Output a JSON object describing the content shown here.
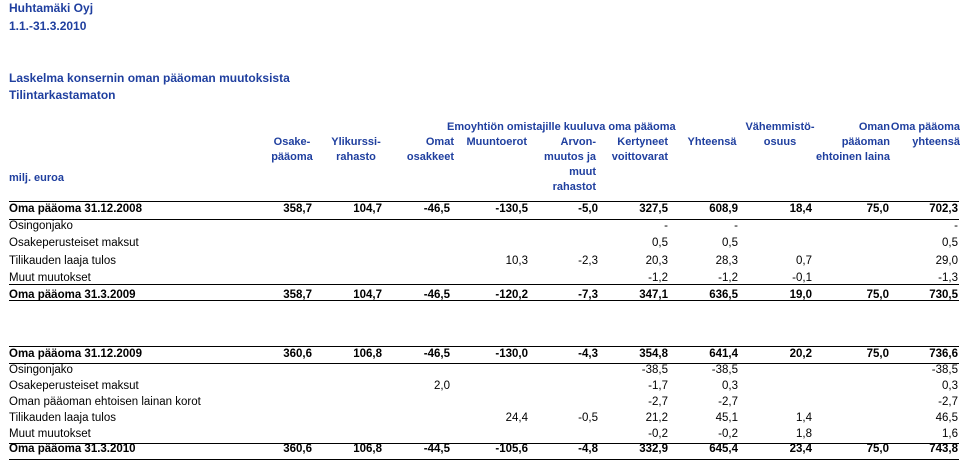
{
  "header": {
    "company": "Huhtamäki Oyj",
    "period": "1.1.-31.3.2010",
    "title": "Laskelma konsernin oman pääoman muutoksista",
    "subtitle": "Tilintarkastamaton",
    "unit": "milj. euroa"
  },
  "columns": {
    "group_title": "Emoyhtiön omistajille kuuluva oma pääoma",
    "c1": "Osake-\npääoma",
    "c2": "Ylikurssi-\nrahasto",
    "c3": "Omat\nosakkeet",
    "c4": "Muuntoerot",
    "c5": "Arvon-\nmuutos ja\nmuut\nrahastot",
    "c6": "Kertyneet\nvoittovarat",
    "c7": "Yhteensä",
    "c8": "Vähemmistö-\nosuus",
    "c9": "Oman\npääoman\nehtoinen laina",
    "c10": "Oma pääoma\nyhteensä"
  },
  "block1": [
    {
      "label": "Oma pääoma 31.12.2008",
      "bold": true,
      "values": [
        "358,7",
        "104,7",
        "-46,5",
        "-130,5",
        "-5,0",
        "327,5",
        "608,9",
        "18,4",
        "75,0",
        "702,3"
      ]
    },
    {
      "label": "Osingonjako",
      "bold": false,
      "values": [
        "",
        "",
        "",
        "",
        "",
        "-",
        "-",
        "",
        "",
        "-"
      ]
    },
    {
      "label": "Osakeperusteiset maksut",
      "bold": false,
      "values": [
        "",
        "",
        "",
        "",
        "",
        "0,5",
        "0,5",
        "",
        "",
        "0,5"
      ]
    },
    {
      "label": "Tilikauden laaja tulos",
      "bold": false,
      "values": [
        "",
        "",
        "",
        "10,3",
        "-2,3",
        "20,3",
        "28,3",
        "0,7",
        "",
        "29,0"
      ]
    },
    {
      "label": "Muut muutokset",
      "bold": false,
      "values": [
        "",
        "",
        "",
        "",
        "",
        "-1,2",
        "-1,2",
        "-0,1",
        "",
        "-1,3"
      ]
    },
    {
      "label": "Oma pääoma 31.3.2009",
      "bold": true,
      "values": [
        "358,7",
        "104,7",
        "-46,5",
        "-120,2",
        "-7,3",
        "347,1",
        "636,5",
        "19,0",
        "75,0",
        "730,5"
      ]
    }
  ],
  "block2": [
    {
      "label": "Oma pääoma 31.12.2009",
      "bold": true,
      "values": [
        "360,6",
        "106,8",
        "-46,5",
        "-130,0",
        "-4,3",
        "354,8",
        "641,4",
        "20,2",
        "75,0",
        "736,6"
      ]
    },
    {
      "label": "Osingonjako",
      "bold": false,
      "values": [
        "",
        "",
        "",
        "",
        "",
        "-38,5",
        "-38,5",
        "",
        "",
        "-38,5"
      ]
    },
    {
      "label": "Osakeperusteiset maksut",
      "bold": false,
      "values": [
        "",
        "",
        "2,0",
        "",
        "",
        "-1,7",
        "0,3",
        "",
        "",
        "0,3"
      ]
    },
    {
      "label": "Oman pääoman ehtoisen lainan korot",
      "bold": false,
      "values": [
        "",
        "",
        "",
        "",
        "",
        "-2,7",
        "-2,7",
        "",
        "",
        "-2,7"
      ]
    },
    {
      "label": "Tilikauden laaja tulos",
      "bold": false,
      "values": [
        "",
        "",
        "",
        "24,4",
        "-0,5",
        "21,2",
        "45,1",
        "1,4",
        "",
        "46,5"
      ]
    },
    {
      "label": "Muut muutokset",
      "bold": false,
      "values": [
        "",
        "",
        "",
        "",
        "",
        "-0,2",
        "-0,2",
        "1,8",
        "",
        "1,6"
      ]
    },
    {
      "label": "Oma pääoma 31.3.2010",
      "bold": true,
      "values": [
        "360,6",
        "106,8",
        "-44,5",
        "-105,6",
        "-4,8",
        "332,9",
        "645,4",
        "23,4",
        "75,0",
        "743,8"
      ]
    }
  ]
}
